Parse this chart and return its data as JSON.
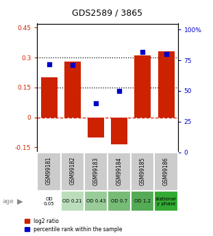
{
  "title": "GDS2589 / 3865",
  "samples": [
    "GSM99181",
    "GSM99182",
    "GSM99183",
    "GSM99184",
    "GSM99185",
    "GSM99186"
  ],
  "log2_ratio": [
    0.2,
    0.28,
    -0.1,
    -0.135,
    0.31,
    0.33
  ],
  "percentile_rank": [
    72,
    71,
    40,
    50,
    82,
    80
  ],
  "bar_color": "#cc2200",
  "dot_color": "#0000cc",
  "ylim_left": [
    -0.175,
    0.47
  ],
  "ylim_right": [
    0,
    105
  ],
  "yticks_left": [
    -0.15,
    0,
    0.15,
    0.3,
    0.45
  ],
  "yticks_right": [
    0,
    25,
    50,
    75,
    100
  ],
  "ytick_labels_left": [
    "-0.15",
    "0",
    "0.15",
    "0.3",
    "0.45"
  ],
  "ytick_labels_right": [
    "0",
    "25",
    "50",
    "75",
    "100%"
  ],
  "hlines": [
    0.15,
    0.3
  ],
  "hline_zero_color": "#cc2200",
  "hline_dotted_color": "#000000",
  "age_labels": [
    "OD\n0.05",
    "OD 0.21",
    "OD 0.43",
    "OD 0.7",
    "OD 1.2",
    "stationar\ny phase"
  ],
  "age_colors": [
    "#ffffff",
    "#bbddbb",
    "#99cc99",
    "#77bb77",
    "#55aa55",
    "#33aa33"
  ],
  "legend_red": "log2 ratio",
  "legend_blue": "percentile rank within the sample"
}
